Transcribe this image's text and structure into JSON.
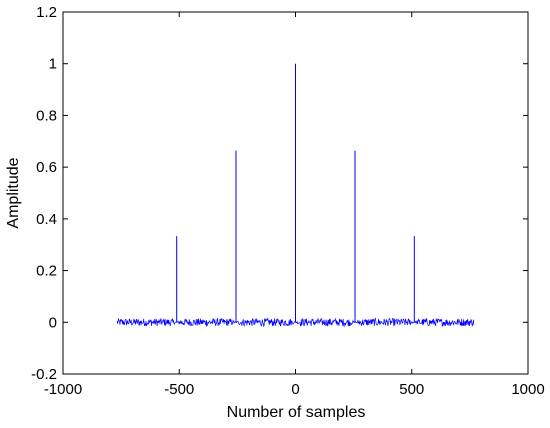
{
  "chart_data": {
    "type": "line",
    "title": "",
    "xlabel": "Number of samples",
    "ylabel": "Amplitude",
    "xlim": [
      -1000,
      1000
    ],
    "ylim": [
      -0.2,
      1.2
    ],
    "xticks": [
      -1000,
      -500,
      0,
      500,
      1000
    ],
    "yticks": [
      -0.2,
      0,
      0.2,
      0.4,
      0.6,
      0.8,
      1,
      1.2
    ],
    "xtick_labels": [
      "-1000",
      "-500",
      "0",
      "500",
      "1000"
    ],
    "ytick_labels": [
      "-0.2",
      "0",
      "0.2",
      "0.4",
      "0.6",
      "0.8",
      "1",
      "1.2"
    ],
    "grid": false,
    "box": true,
    "series": [
      {
        "color": "#0000ff",
        "x_range": [
          -767,
          767
        ],
        "noise_amplitude": 0.015,
        "noise_zero_near_peaks": true,
        "peaks": [
          {
            "x": -511,
            "y": 0.333
          },
          {
            "x": -256,
            "y": 0.664
          },
          {
            "x": 0,
            "y": 1.0
          },
          {
            "x": 256,
            "y": 0.664
          },
          {
            "x": 511,
            "y": 0.333
          }
        ]
      }
    ]
  }
}
